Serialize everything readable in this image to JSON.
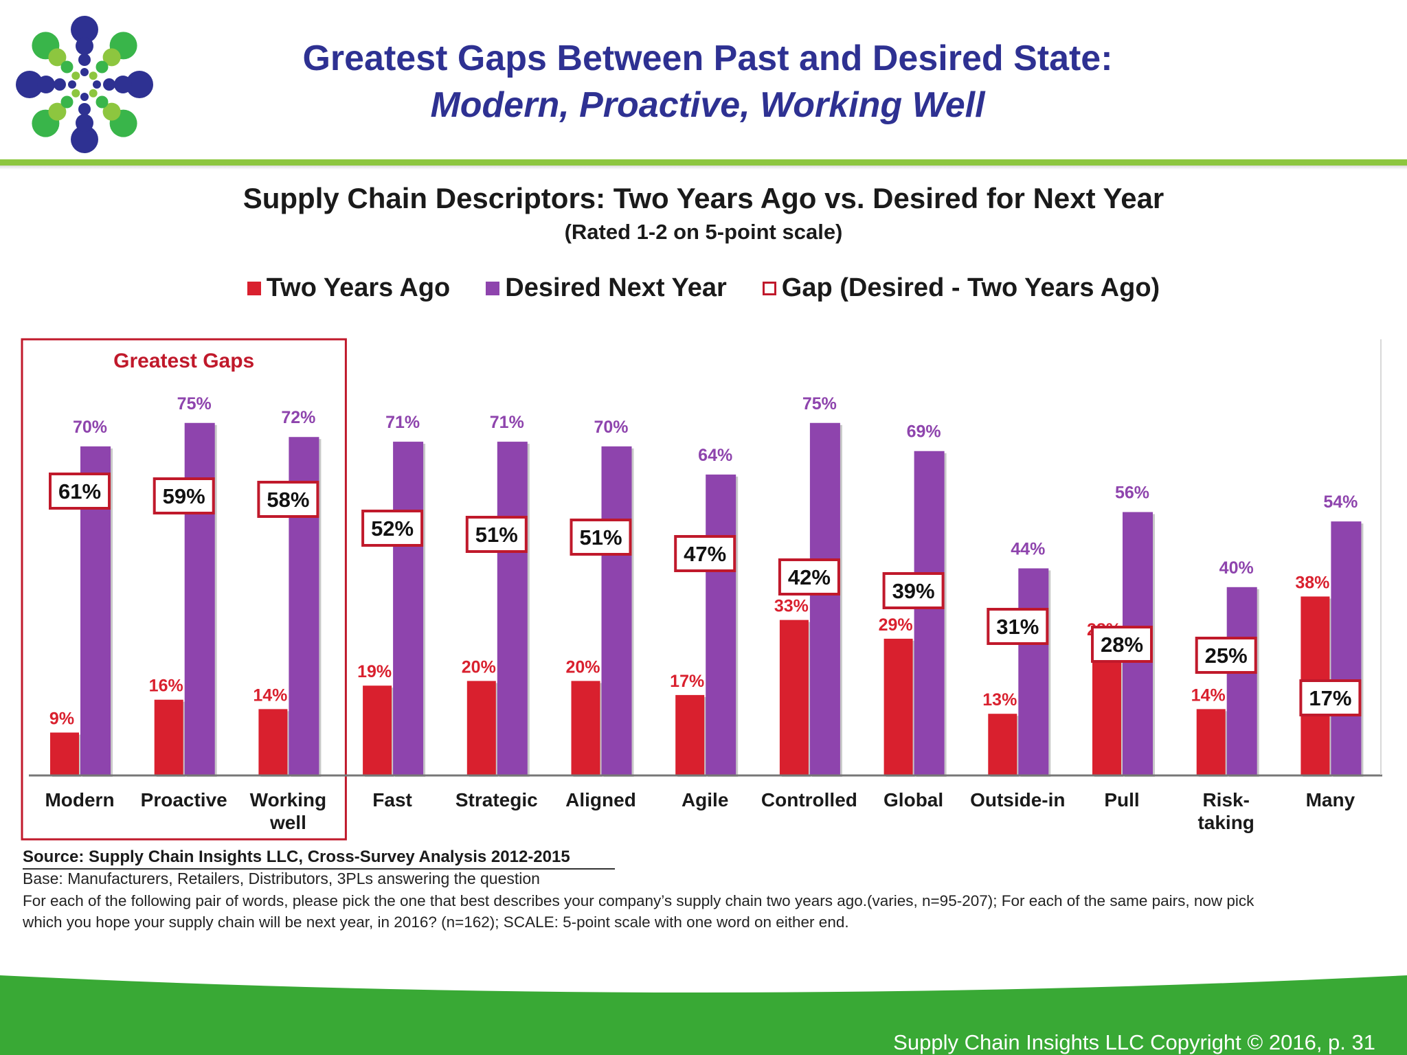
{
  "slide": {
    "title_line1": "Greatest Gaps Between Past and Desired State:",
    "title_line2": "Modern, Proactive, Working Well",
    "footer": "Supply Chain Insights LLC Copyright © 2016, p. 31"
  },
  "logo": {
    "icon": "dot-burst-logo",
    "colors": [
      "#2e3192",
      "#39b54a",
      "#8dc63f"
    ]
  },
  "chart_data": {
    "type": "bar",
    "title": "Supply Chain Descriptors: Two Years Ago vs. Desired for Next Year",
    "subtitle": "(Rated 1-2 on 5-point scale)",
    "categories": [
      "Modern",
      "Proactive",
      "Working well",
      "Fast",
      "Strategic",
      "Aligned",
      "Agile",
      "Controlled",
      "Global",
      "Outside-in",
      "Pull",
      "Risk-taking",
      "Many"
    ],
    "category_lines": [
      [
        "Modern"
      ],
      [
        "Proactive"
      ],
      [
        "Working",
        "well"
      ],
      [
        "Fast"
      ],
      [
        "Strategic"
      ],
      [
        "Aligned"
      ],
      [
        "Agile"
      ],
      [
        "Controlled"
      ],
      [
        "Global"
      ],
      [
        "Outside-in"
      ],
      [
        "Pull"
      ],
      [
        "Risk-",
        "taking"
      ],
      [
        "Many"
      ]
    ],
    "series": [
      {
        "name": "Two Years Ago",
        "color": "#d9202e",
        "values": [
          9,
          16,
          14,
          19,
          20,
          20,
          17,
          33,
          29,
          13,
          28,
          14,
          38
        ]
      },
      {
        "name": "Desired Next Year",
        "color": "#8e44ad",
        "values": [
          70,
          75,
          72,
          71,
          71,
          70,
          64,
          75,
          69,
          44,
          56,
          40,
          54
        ]
      },
      {
        "name": "Gap (Desired - Two Years Ago)",
        "color": "#c0192b",
        "values": [
          61,
          59,
          58,
          52,
          51,
          51,
          47,
          42,
          39,
          31,
          28,
          25,
          17
        ]
      }
    ],
    "value_format": "%",
    "legend_position": "top",
    "grid": false,
    "ylim": [
      0,
      80
    ],
    "highlight": {
      "label": "Greatest Gaps",
      "categories": [
        "Modern",
        "Proactive",
        "Working well"
      ],
      "color": "#c0192b"
    }
  },
  "source": {
    "title": "Source:  Supply Chain Insights LLC, Cross-Survey Analysis 2012-2015",
    "base": "Base:  Manufacturers,  Retailers, Distributors, 3PLs answering the question",
    "question": "For each of the following pair of words, please pick the one that best describes your company’s supply chain two years ago.(varies, n=95-207); For each of the same pairs, now pick which you hope your supply chain will be next year, in 2016? (n=162); SCALE: 5-point scale with one word on either end."
  }
}
